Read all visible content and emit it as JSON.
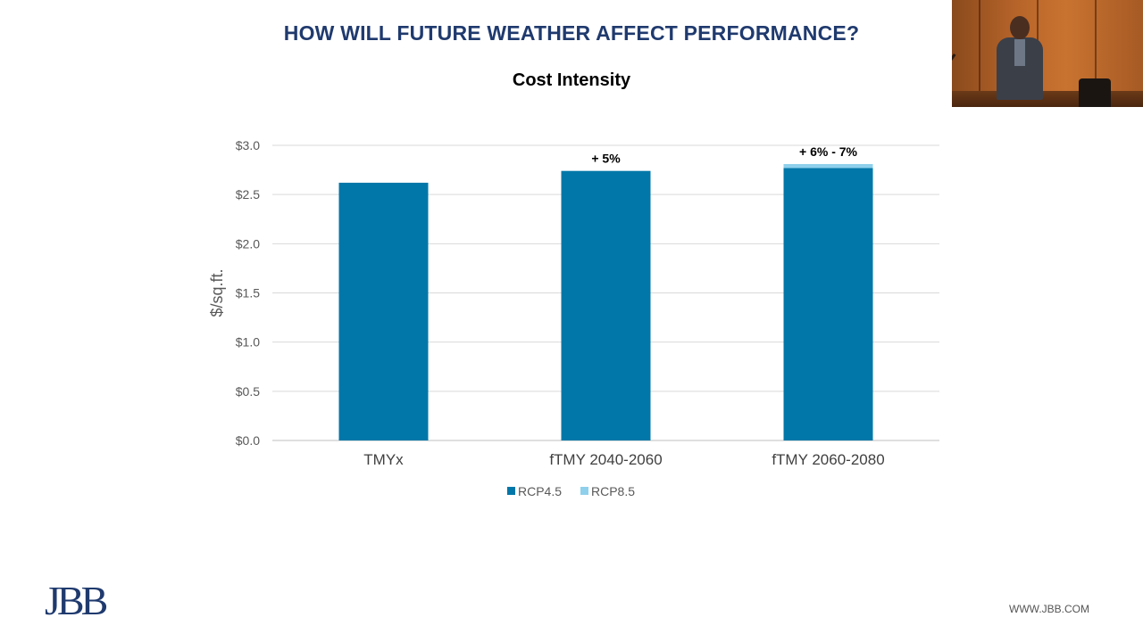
{
  "slide": {
    "title": "HOW WILL FUTURE WEATHER AFFECT PERFORMANCE?",
    "footer_url": "WWW.JBB.COM",
    "logo_text": "JBB"
  },
  "video": {
    "label": "speaker video feed"
  },
  "chart_data": {
    "type": "bar",
    "stacked": true,
    "title": "Cost Intensity",
    "ylabel": "$/sq.ft.",
    "xlabel": "",
    "ylim": [
      0,
      3.0
    ],
    "yticks": [
      0.0,
      0.5,
      1.0,
      1.5,
      2.0,
      2.5,
      3.0
    ],
    "ytick_labels": [
      "$0.0",
      "$0.5",
      "$1.0",
      "$1.5",
      "$2.0",
      "$2.5",
      "$3.0"
    ],
    "grid": true,
    "legend_position": "bottom",
    "categories": [
      "TMYx",
      "fTMY 2040-2060",
      "fTMY 2060-2080"
    ],
    "series": [
      {
        "name": "RCP4.5",
        "color": "#0077a8",
        "values": [
          2.62,
          2.74,
          2.77
        ]
      },
      {
        "name": "RCP8.5",
        "color": "#8fd0ec",
        "values": [
          0,
          0,
          0.04
        ]
      }
    ],
    "annotations": [
      "",
      "+ 5%",
      "+ 6% - 7%"
    ]
  }
}
